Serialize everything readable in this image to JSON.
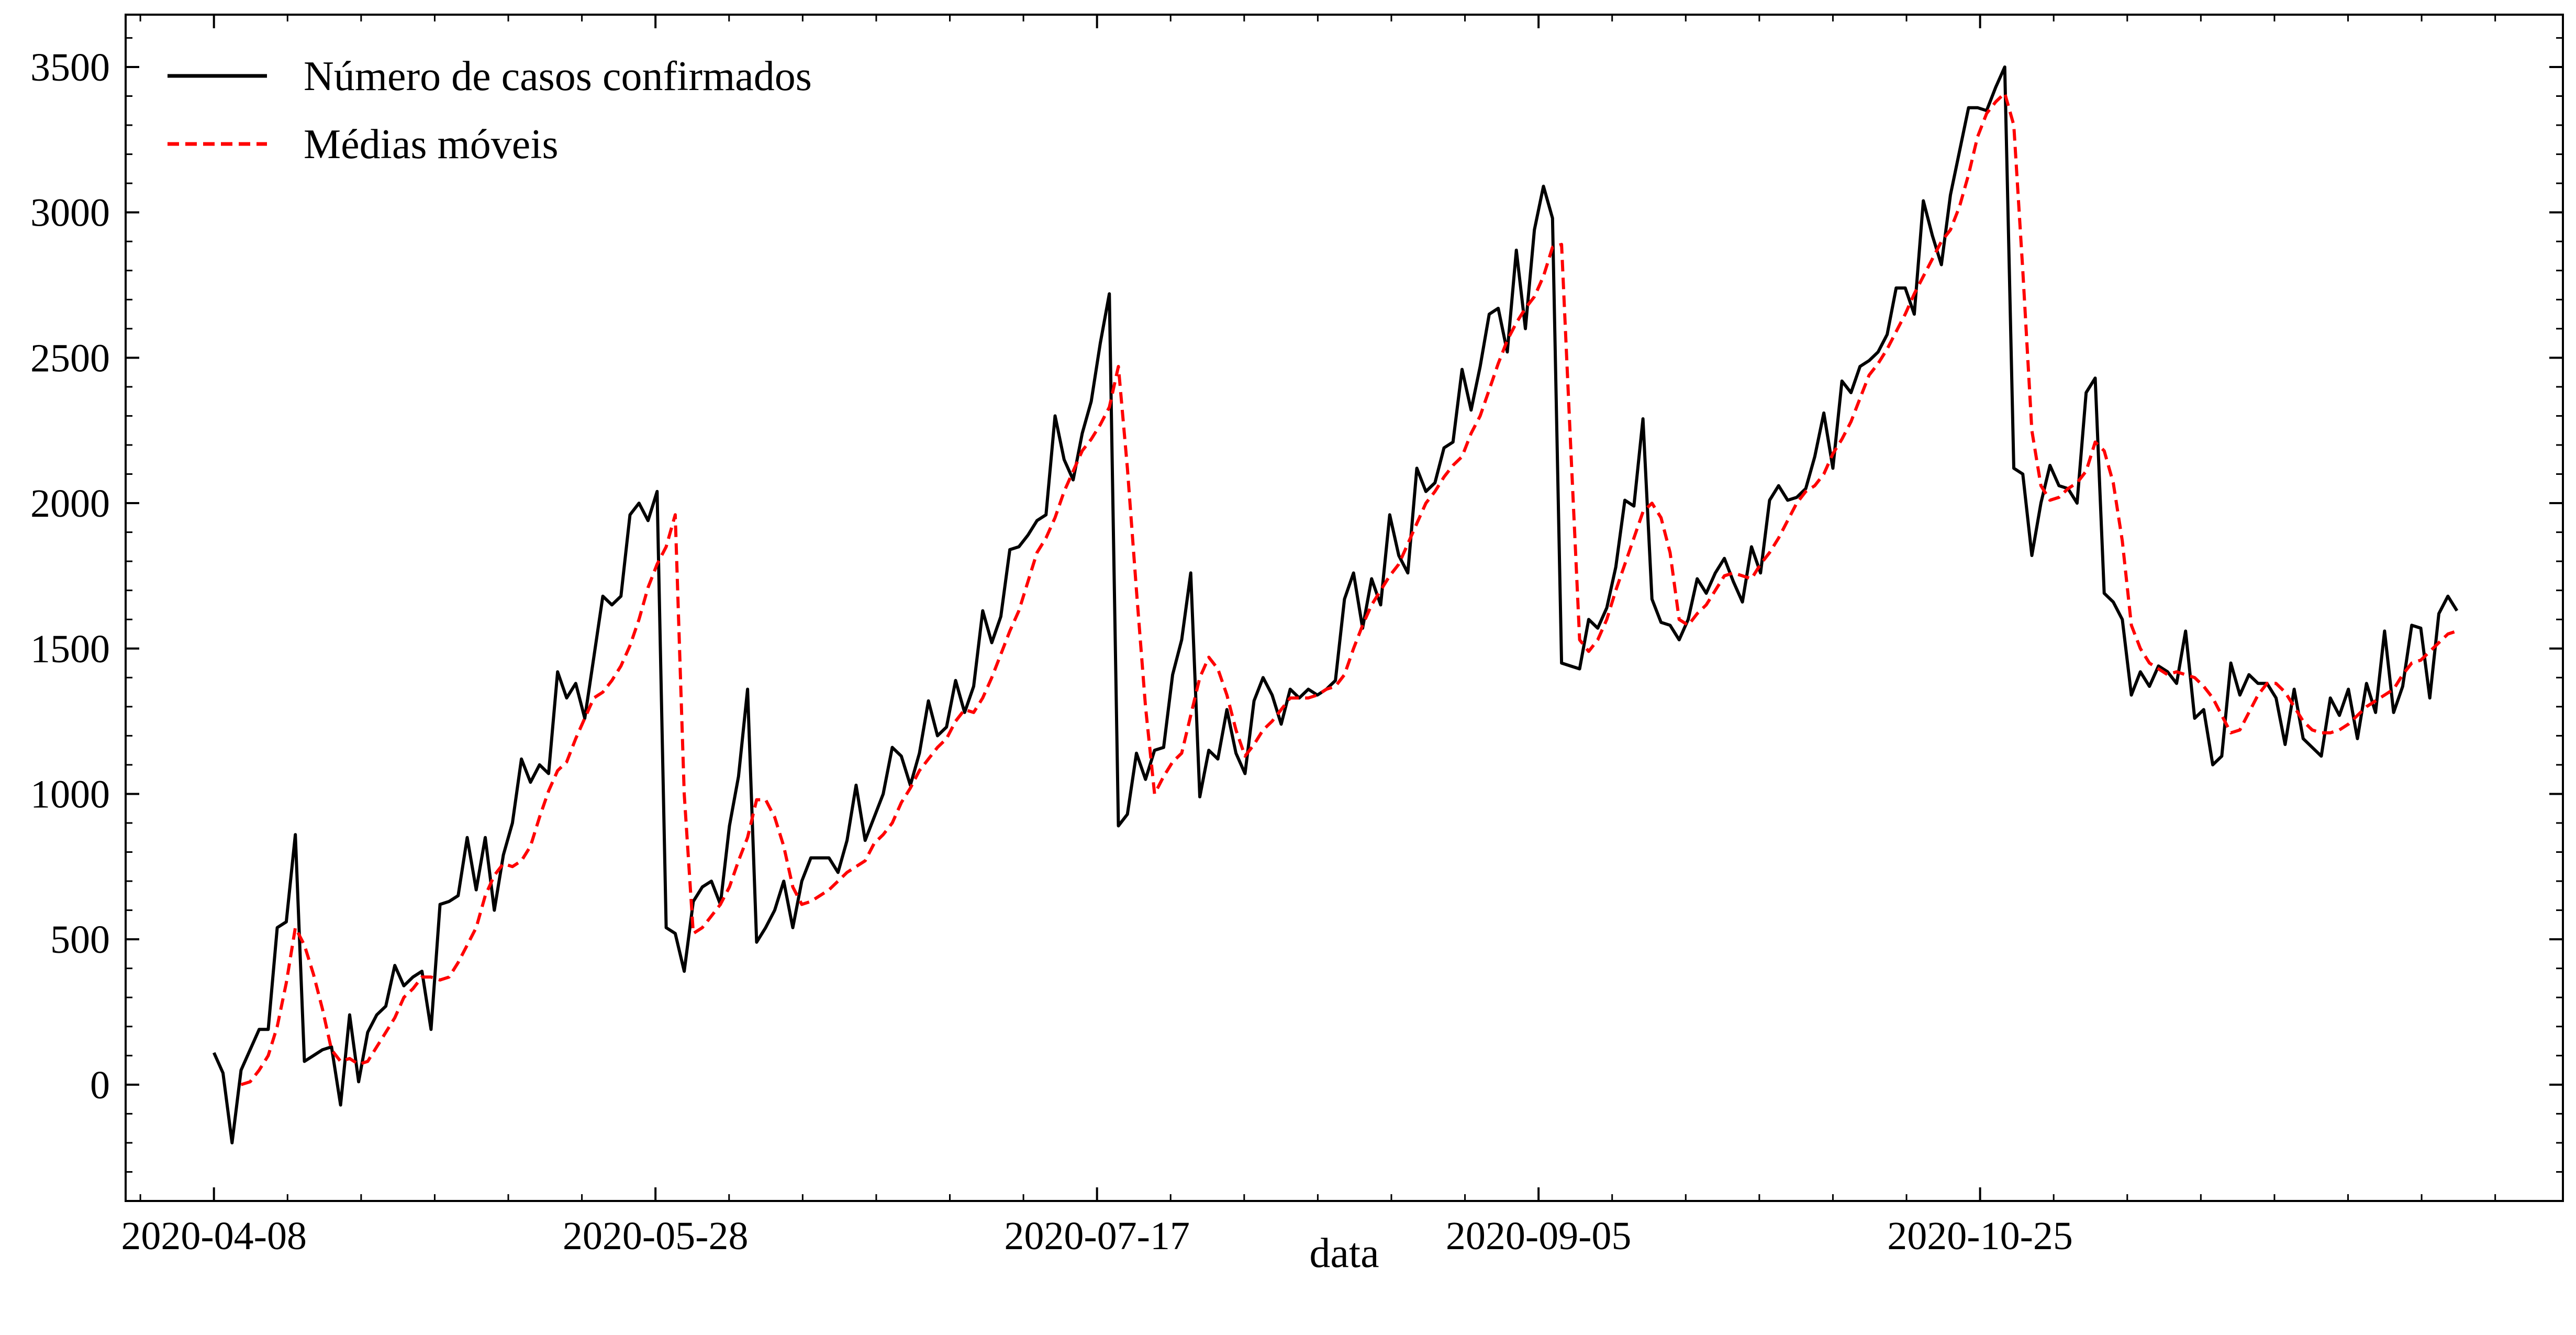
{
  "chart_data": {
    "type": "line",
    "title": "",
    "xlabel": "data",
    "ylabel": "",
    "x_start": "2020-04-08",
    "x_end": "2020-12-18",
    "xlim": [
      "2020-03-29",
      "2020-12-30"
    ],
    "ylim": [
      -400,
      3680
    ],
    "yticks": [
      0,
      500,
      1000,
      1500,
      2000,
      2500,
      3000,
      3500
    ],
    "ytick_labels": [
      "0",
      "500",
      "1000",
      "1500",
      "2000",
      "2500",
      "3000",
      "3500"
    ],
    "xticks": [
      "2020-04-08",
      "2020-05-28",
      "2020-07-17",
      "2020-09-05",
      "2020-10-25"
    ],
    "xtick_labels": [
      "2020-04-08",
      "2020-05-28",
      "2020-07-17",
      "2020-09-05",
      "2020-10-25"
    ],
    "grid": false,
    "legend_position": "top-left",
    "series": [
      {
        "name": "Número de casos confirmados",
        "color": "#000000",
        "style": "solid",
        "values": [
          110,
          40,
          -200,
          50,
          120,
          190,
          190,
          540,
          560,
          860,
          80,
          100,
          120,
          130,
          -70,
          240,
          10,
          180,
          240,
          270,
          410,
          340,
          370,
          390,
          190,
          620,
          630,
          650,
          850,
          670,
          850,
          600,
          790,
          900,
          1120,
          1040,
          1100,
          1070,
          1420,
          1330,
          1380,
          1260,
          1470,
          1680,
          1650,
          1680,
          1960,
          2000,
          1940,
          2040,
          540,
          520,
          390,
          630,
          680,
          700,
          620,
          890,
          1060,
          1360,
          490,
          540,
          600,
          700,
          540,
          700,
          780,
          780,
          780,
          730,
          840,
          1030,
          840,
          920,
          1000,
          1160,
          1130,
          1030,
          1140,
          1320,
          1200,
          1230,
          1390,
          1280,
          1370,
          1630,
          1520,
          1610,
          1840,
          1850,
          1890,
          1940,
          1960,
          2300,
          2150,
          2080,
          2240,
          2350,
          2550,
          2720,
          890,
          930,
          1140,
          1050,
          1150,
          1160,
          1410,
          1530,
          1760,
          990,
          1150,
          1120,
          1290,
          1140,
          1070,
          1320,
          1400,
          1340,
          1240,
          1360,
          1330,
          1360,
          1340,
          1360,
          1390,
          1670,
          1760,
          1570,
          1740,
          1650,
          1960,
          1820,
          1760,
          2120,
          2040,
          2070,
          2190,
          2210,
          2460,
          2320,
          2470,
          2650,
          2670,
          2520,
          2870,
          2600,
          2940,
          3090,
          2980,
          1450,
          1440,
          1430,
          1600,
          1570,
          1640,
          1780,
          2010,
          1990,
          2290,
          1670,
          1590,
          1580,
          1530,
          1600,
          1740,
          1690,
          1760,
          1810,
          1730,
          1660,
          1850,
          1760,
          2010,
          2060,
          2010,
          2020,
          2050,
          2160,
          2310,
          2120,
          2420,
          2380,
          2470,
          2490,
          2520,
          2580,
          2740,
          2740,
          2650,
          3040,
          2920,
          2820,
          3060,
          3210,
          3360,
          3360,
          3350,
          3430,
          3500,
          2120,
          2100,
          1820,
          2000,
          2130,
          2060,
          2050,
          2000,
          2380,
          2430,
          1690,
          1660,
          1600,
          1340,
          1420,
          1370,
          1440,
          1420,
          1380,
          1560,
          1260,
          1290,
          1100,
          1130,
          1450,
          1340,
          1410,
          1380,
          1380,
          1330,
          1170,
          1360,
          1190,
          1160,
          1130,
          1330,
          1270,
          1360,
          1190,
          1380,
          1280,
          1560,
          1280,
          1370,
          1580,
          1570,
          1330,
          1620,
          1680,
          1630
        ]
      },
      {
        "name": "Médias móveis",
        "color": "#ff0000",
        "style": "dashed",
        "offset": 3,
        "values": [
          0,
          10,
          50,
          100,
          200,
          350,
          540,
          480,
          380,
          260,
          120,
          80,
          90,
          70,
          80,
          130,
          180,
          230,
          300,
          330,
          370,
          370,
          360,
          370,
          420,
          480,
          540,
          650,
          720,
          760,
          750,
          770,
          820,
          920,
          1010,
          1080,
          1110,
          1190,
          1260,
          1330,
          1350,
          1390,
          1440,
          1510,
          1600,
          1710,
          1790,
          1850,
          1960,
          1000,
          520,
          540,
          580,
          620,
          680,
          770,
          850,
          980,
          980,
          920,
          820,
          680,
          620,
          630,
          650,
          670,
          700,
          730,
          750,
          770,
          830,
          860,
          900,
          970,
          1020,
          1080,
          1120,
          1160,
          1190,
          1250,
          1290,
          1280,
          1330,
          1400,
          1480,
          1560,
          1630,
          1730,
          1830,
          1880,
          1950,
          2040,
          2110,
          2180,
          2220,
          2270,
          2330,
          2470,
          2120,
          1700,
          1300,
          1000,
          1060,
          1110,
          1140,
          1270,
          1400,
          1470,
          1430,
          1340,
          1220,
          1130,
          1170,
          1220,
          1250,
          1290,
          1330,
          1330,
          1330,
          1340,
          1360,
          1370,
          1410,
          1500,
          1580,
          1650,
          1700,
          1750,
          1790,
          1860,
          1930,
          2000,
          2040,
          2090,
          2130,
          2160,
          2240,
          2300,
          2390,
          2480,
          2560,
          2620,
          2670,
          2710,
          2780,
          2880,
          2890,
          2200,
          1530,
          1490,
          1530,
          1600,
          1700,
          1790,
          1880,
          1970,
          2000,
          1950,
          1830,
          1600,
          1580,
          1620,
          1650,
          1700,
          1750,
          1760,
          1750,
          1740,
          1790,
          1830,
          1880,
          1940,
          2000,
          2040,
          2060,
          2100,
          2170,
          2220,
          2280,
          2360,
          2440,
          2480,
          2530,
          2590,
          2650,
          2720,
          2780,
          2840,
          2900,
          2940,
          3020,
          3130,
          3260,
          3340,
          3380,
          3410,
          3300,
          2800,
          2250,
          2060,
          2010,
          2020,
          2050,
          2070,
          2110,
          2210,
          2180,
          2070,
          1870,
          1580,
          1500,
          1450,
          1430,
          1410,
          1420,
          1410,
          1400,
          1370,
          1330,
          1270,
          1210,
          1220,
          1280,
          1340,
          1380,
          1380,
          1350,
          1300,
          1250,
          1220,
          1210,
          1210,
          1220,
          1240,
          1270,
          1300,
          1320,
          1340,
          1360,
          1410,
          1450,
          1460,
          1490,
          1520,
          1550,
          1560
        ]
      }
    ]
  }
}
